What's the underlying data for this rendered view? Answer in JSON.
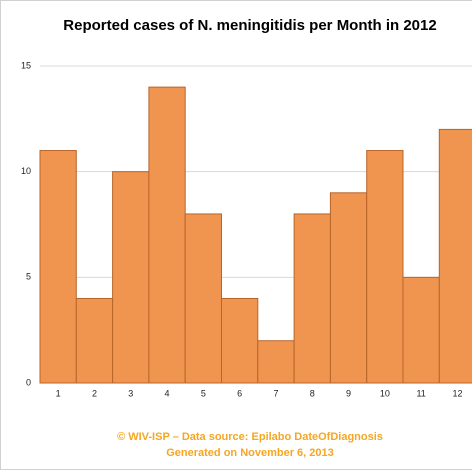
{
  "chart_data": {
    "type": "bar",
    "title": "Reported cases of N. meningitidis per Month in 2012",
    "categories": [
      "1",
      "2",
      "3",
      "4",
      "5",
      "6",
      "7",
      "8",
      "9",
      "10",
      "11",
      "12"
    ],
    "values": [
      11,
      4,
      10,
      14,
      8,
      4,
      2,
      8,
      9,
      11,
      5,
      12
    ],
    "color": "#f0954f",
    "ylim": [
      0,
      15
    ],
    "yticks": [
      0,
      5,
      10,
      15
    ],
    "grid": true,
    "annotations": [
      "© WIV-ISP – Data source: Epilabo DateOfDiagnosis",
      "Generated on November 6, 2013"
    ]
  }
}
